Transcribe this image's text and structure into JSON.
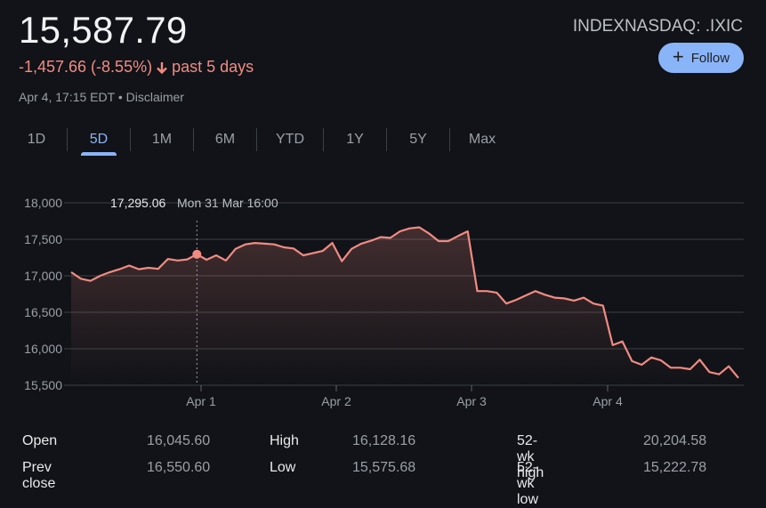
{
  "header": {
    "price": "15,587.79",
    "change": "-1,457.66 (-8.55%)",
    "change_icon": "arrow-down-icon",
    "period": "past 5 days",
    "timestamp": "Apr 4, 17:15 EDT",
    "separator": "•",
    "disclaimer": "Disclaimer",
    "ticker": "INDEXNASDAQ: .IXIC",
    "follow_label": "Follow",
    "follow_icon": "plus-icon"
  },
  "colors": {
    "background": "#111318",
    "negative": "#f28b82",
    "accent": "#8ab4f8",
    "muted": "#9aa0a6",
    "line": "#f28b82"
  },
  "tabs": [
    {
      "label": "1D",
      "active": false
    },
    {
      "label": "5D",
      "active": true
    },
    {
      "label": "1M",
      "active": false
    },
    {
      "label": "6M",
      "active": false
    },
    {
      "label": "YTD",
      "active": false
    },
    {
      "label": "1Y",
      "active": false
    },
    {
      "label": "5Y",
      "active": false
    },
    {
      "label": "Max",
      "active": false
    }
  ],
  "tooltip": {
    "value": "17,295.06",
    "time": "Mon 31 Mar 16:00"
  },
  "stats": {
    "open_label": "Open",
    "open": "16,045.60",
    "prev_close_label": "Prev close",
    "prev_close": "16,550.60",
    "high_label": "High",
    "high": "16,128.16",
    "low_label": "Low",
    "low": "15,575.68",
    "wk52_high_label": "52-wk high",
    "wk52_high": "20,204.58",
    "wk52_low_label": "52-wk low",
    "wk52_low": "15,222.78"
  },
  "chart_data": {
    "type": "area",
    "title": "INDEXNASDAQ: .IXIC — 5D",
    "xlabel": "",
    "ylabel": "",
    "ylim": [
      15500,
      18000
    ],
    "yticks": [
      "18,000",
      "17,500",
      "17,000",
      "16,500",
      "16,000",
      "15,500"
    ],
    "ytick_values": [
      18000,
      17500,
      17000,
      16500,
      16000,
      15500
    ],
    "xticks": [
      "Apr 1",
      "Apr 2",
      "Apr 3",
      "Apr 4"
    ],
    "grid": true,
    "highlight": {
      "label": "Mon 31 Mar 16:00",
      "value": 17295.06,
      "index": 13
    },
    "series": [
      {
        "name": ".IXIC",
        "values": [
          17050,
          16960,
          16930,
          17000,
          17050,
          17090,
          17140,
          17090,
          17110,
          17095,
          17230,
          17210,
          17225,
          17295,
          17220,
          17280,
          17210,
          17370,
          17430,
          17450,
          17440,
          17430,
          17390,
          17375,
          17280,
          17310,
          17340,
          17450,
          17200,
          17370,
          17440,
          17480,
          17530,
          17520,
          17610,
          17650,
          17665,
          17580,
          17475,
          17475,
          17545,
          17610,
          16790,
          16790,
          16770,
          16620,
          16670,
          16730,
          16790,
          16740,
          16700,
          16690,
          16660,
          16700,
          16620,
          16590,
          16050,
          16100,
          15830,
          15780,
          15880,
          15840,
          15740,
          15740,
          15720,
          15850,
          15680,
          15650,
          15760,
          15600
        ]
      }
    ],
    "last_value": 15587.79
  }
}
